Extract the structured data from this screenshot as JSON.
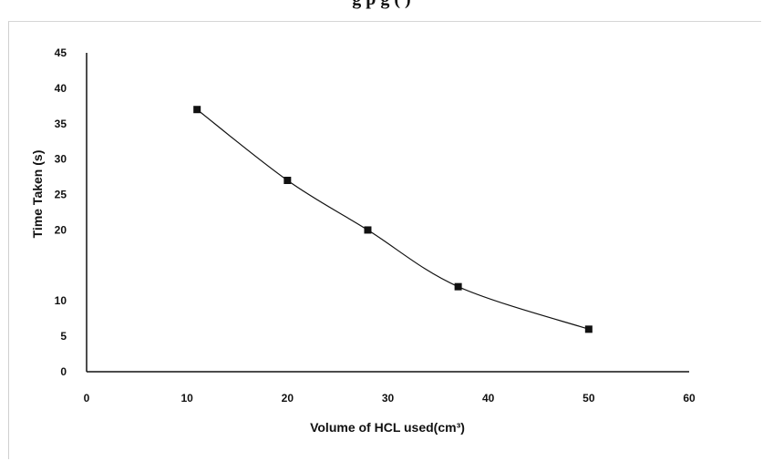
{
  "header": {
    "cut_title": "g      p              g                            (   )"
  },
  "chart_data": {
    "type": "line",
    "title": "",
    "xlabel": "Volume of HCL used(cm³)",
    "ylabel": "Time Taken (s)",
    "xlim": [
      0,
      60
    ],
    "ylim": [
      0,
      45
    ],
    "x_ticks": [
      0,
      10,
      20,
      30,
      40,
      50,
      60
    ],
    "y_ticks": [
      0,
      5,
      10,
      20,
      25,
      30,
      35,
      40,
      45
    ],
    "grid": false,
    "legend": "none",
    "series": [
      {
        "x": [
          11,
          20,
          28,
          37,
          50
        ],
        "y": [
          37,
          27,
          20,
          12,
          6
        ],
        "marker": "square",
        "line": "smooth",
        "color": "#111111"
      }
    ]
  }
}
